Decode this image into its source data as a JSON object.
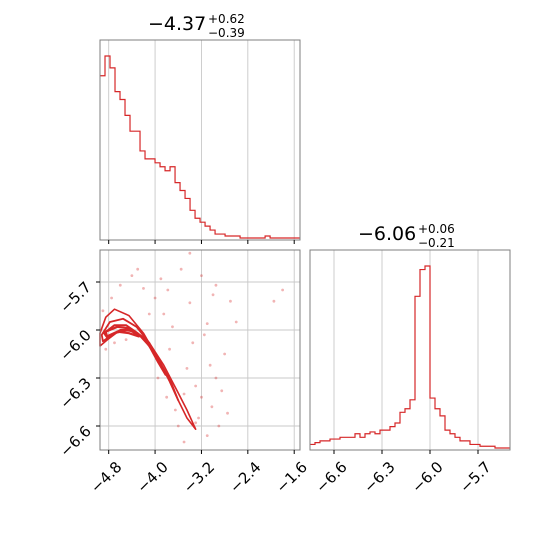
{
  "chart_data": {
    "type": "corner",
    "color": "#d62728",
    "grid": true,
    "params": [
      {
        "median": "−4.37",
        "plus": "+0.62",
        "minus": "−0.39",
        "range": [
          -4.95,
          -1.5
        ]
      },
      {
        "median": "−6.06",
        "plus": "+0.06",
        "minus": "−0.21",
        "range": [
          -6.75,
          -5.5
        ]
      }
    ],
    "ticks": {
      "p1": [
        {
          "value": -4.8,
          "label": "−4.8"
        },
        {
          "value": -4.0,
          "label": "−4.0"
        },
        {
          "value": -3.2,
          "label": "−3.2"
        },
        {
          "value": -2.4,
          "label": "−2.4"
        },
        {
          "value": -1.6,
          "label": "−1.6"
        }
      ],
      "p2": [
        {
          "value": -5.7,
          "label": "−5.7"
        },
        {
          "value": -6.0,
          "label": "−6.0"
        },
        {
          "value": -6.3,
          "label": "−6.3"
        },
        {
          "value": -6.6,
          "label": "−6.6"
        }
      ],
      "p2_bottom": [
        {
          "value": -6.6,
          "label": "−6.6"
        },
        {
          "value": -6.3,
          "label": "−6.3"
        },
        {
          "value": -6.0,
          "label": "−6.0"
        },
        {
          "value": -5.7,
          "label": "−5.7"
        }
      ]
    },
    "hist1": {
      "bin_start": -4.95,
      "bin_width": 0.0863,
      "counts": [
        82,
        92,
        86,
        74,
        70,
        62,
        54,
        54,
        44,
        40,
        40,
        38,
        36,
        34,
        36,
        28,
        24,
        20,
        14,
        10,
        8,
        6,
        4,
        2,
        2,
        1,
        1,
        1,
        0,
        0,
        0,
        0,
        0,
        1,
        0,
        0,
        0,
        0,
        0,
        0
      ]
    },
    "hist2": {
      "bin_start": -6.75,
      "bin_width": 0.03125,
      "counts": [
        2,
        3,
        4,
        4,
        5,
        5,
        6,
        6,
        6,
        8,
        6,
        8,
        9,
        8,
        10,
        10,
        12,
        14,
        20,
        22,
        27,
        85,
        100,
        102,
        28,
        22,
        18,
        10,
        8,
        6,
        4,
        4,
        2,
        2,
        1,
        1,
        1,
        0,
        0,
        0
      ]
    },
    "contour_bands": [
      [
        [
          -4.95,
          -6.02
        ],
        [
          -4.85,
          -5.92
        ],
        [
          -4.7,
          -5.87
        ],
        [
          -4.45,
          -5.91
        ],
        [
          -4.2,
          -6.02
        ],
        [
          -3.98,
          -6.16
        ],
        [
          -3.78,
          -6.29
        ],
        [
          -3.6,
          -6.44
        ],
        [
          -3.45,
          -6.55
        ],
        [
          -3.3,
          -6.62
        ],
        [
          -3.45,
          -6.5
        ],
        [
          -3.62,
          -6.38
        ],
        [
          -3.85,
          -6.22
        ],
        [
          -4.1,
          -6.08
        ],
        [
          -4.35,
          -6.01
        ],
        [
          -4.6,
          -6.0
        ],
        [
          -4.82,
          -6.06
        ],
        [
          -4.95,
          -6.1
        ]
      ],
      [
        [
          -4.92,
          -6.03
        ],
        [
          -4.78,
          -5.95
        ],
        [
          -4.55,
          -5.93
        ],
        [
          -4.32,
          -5.98
        ],
        [
          -4.1,
          -6.08
        ],
        [
          -3.9,
          -6.21
        ],
        [
          -3.72,
          -6.33
        ],
        [
          -3.6,
          -6.44
        ],
        [
          -3.75,
          -6.32
        ],
        [
          -3.95,
          -6.18
        ],
        [
          -4.2,
          -6.05
        ],
        [
          -4.45,
          -6.0
        ],
        [
          -4.7,
          -6.02
        ],
        [
          -4.9,
          -6.07
        ]
      ],
      [
        [
          -4.88,
          -6.02
        ],
        [
          -4.7,
          -5.97
        ],
        [
          -4.5,
          -5.97
        ],
        [
          -4.3,
          -6.02
        ],
        [
          -4.1,
          -6.1
        ],
        [
          -3.95,
          -6.2
        ],
        [
          -3.82,
          -6.28
        ],
        [
          -3.95,
          -6.17
        ],
        [
          -4.15,
          -6.06
        ],
        [
          -4.38,
          -6.0
        ],
        [
          -4.6,
          -6.0
        ],
        [
          -4.82,
          -6.05
        ]
      ],
      [
        [
          -4.85,
          -6.01
        ],
        [
          -4.65,
          -5.98
        ],
        [
          -4.45,
          -5.99
        ],
        [
          -4.28,
          -6.04
        ],
        [
          -4.45,
          -6.02
        ],
        [
          -4.65,
          -6.01
        ],
        [
          -4.83,
          -6.04
        ]
      ]
    ],
    "samples": [
      [
        -3.2,
        -5.66
      ],
      [
        -2.95,
        -5.72
      ],
      [
        -3.4,
        -5.83
      ],
      [
        -3.1,
        -5.96
      ],
      [
        -3.55,
        -5.62
      ],
      [
        -3.78,
        -5.75
      ],
      [
        -3.9,
        -5.68
      ],
      [
        -3.35,
        -6.08
      ],
      [
        -3.05,
        -6.22
      ],
      [
        -2.85,
        -6.38
      ],
      [
        -2.75,
        -6.52
      ],
      [
        -2.9,
        -6.6
      ],
      [
        -3.1,
        -6.66
      ],
      [
        -3.3,
        -6.58
      ],
      [
        -3.5,
        -6.7
      ],
      [
        -3.25,
        -6.55
      ],
      [
        -3.6,
        -6.6
      ],
      [
        -3.02,
        -6.48
      ],
      [
        -4.6,
        -5.72
      ],
      [
        -4.4,
        -5.66
      ],
      [
        -4.2,
        -5.74
      ],
      [
        -4.0,
        -5.8
      ],
      [
        -3.85,
        -5.9
      ],
      [
        -3.7,
        -5.98
      ],
      [
        -4.75,
        -5.8
      ],
      [
        -4.9,
        -5.88
      ],
      [
        -4.85,
        -6.12
      ],
      [
        -4.7,
        -6.08
      ],
      [
        -4.5,
        -6.06
      ],
      [
        -3.95,
        -6.3
      ],
      [
        -3.8,
        -6.42
      ],
      [
        -3.65,
        -6.5
      ],
      [
        -3.5,
        -6.4
      ],
      [
        -3.45,
        -6.24
      ],
      [
        -2.7,
        -5.82
      ],
      [
        -2.6,
        -5.95
      ],
      [
        -3.0,
        -5.78
      ],
      [
        -3.15,
        -6.03
      ],
      [
        -3.3,
        -6.35
      ],
      [
        -2.95,
        -6.3
      ],
      [
        -4.3,
        -5.62
      ],
      [
        -4.1,
        -5.9
      ],
      [
        -3.75,
        -6.12
      ],
      [
        -3.2,
        -6.42
      ],
      [
        -2.8,
        -6.15
      ],
      [
        -1.8,
        -5.75
      ],
      [
        -1.95,
        -5.82
      ],
      [
        -3.4,
        -5.52
      ]
    ]
  }
}
